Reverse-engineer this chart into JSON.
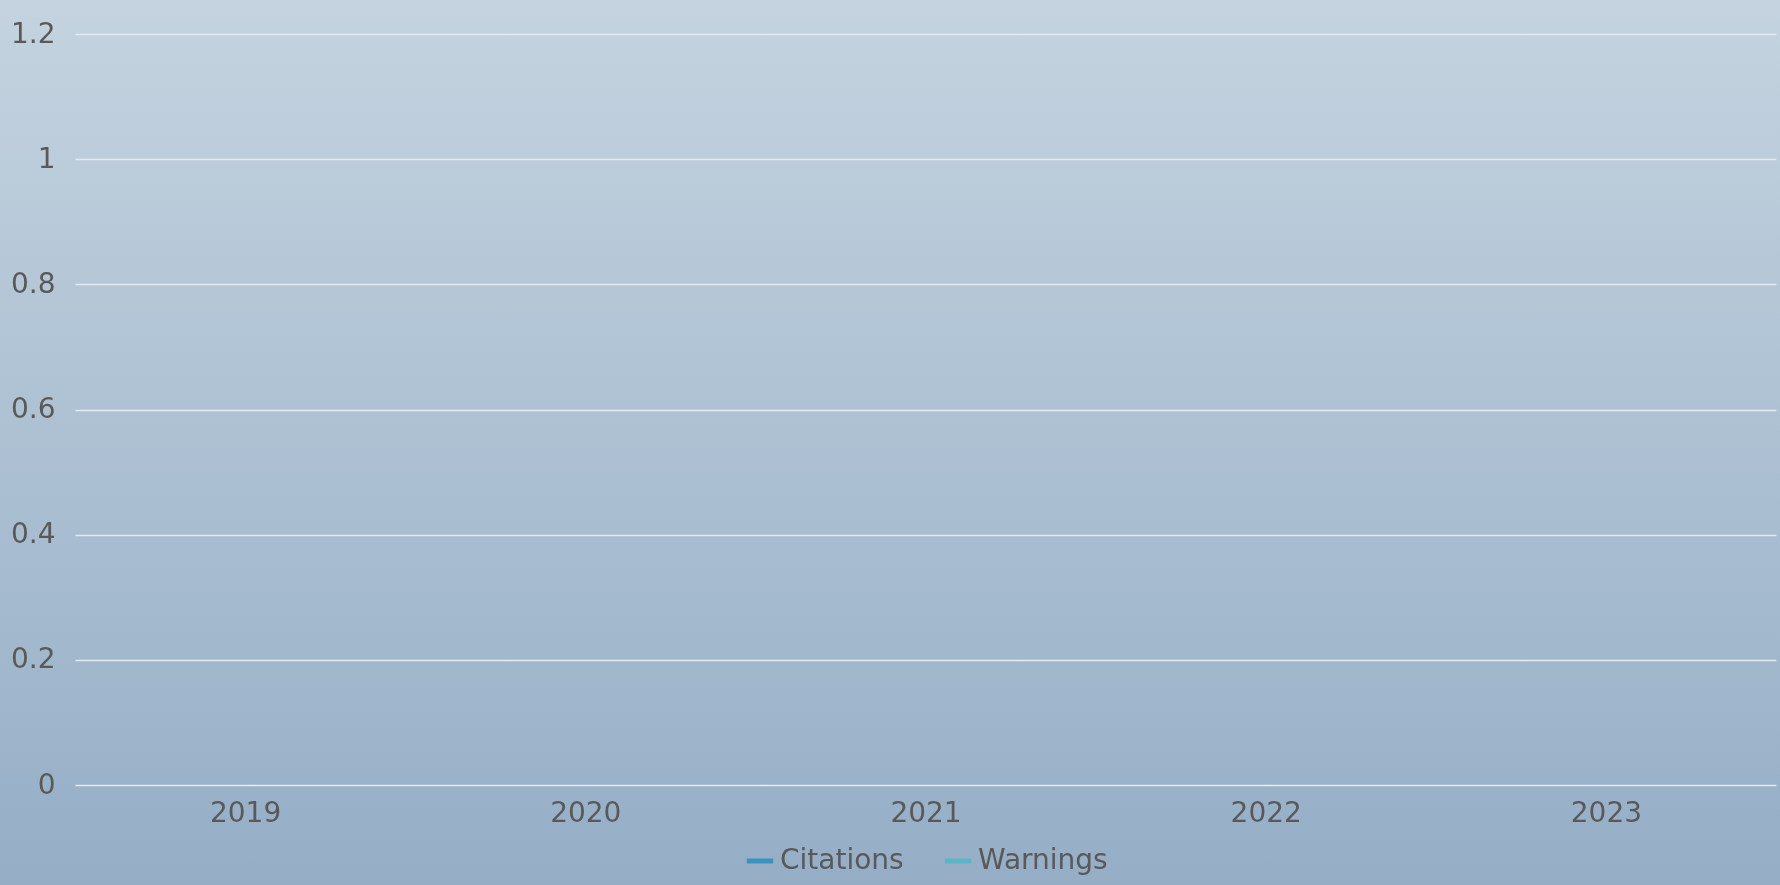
{
  "chart_data": {
    "type": "line",
    "categories": [
      "2019",
      "2020",
      "2021",
      "2022",
      "2023"
    ],
    "series": [
      {
        "name": "Citations",
        "color": "#3a93c0",
        "values": [
          null,
          null,
          null,
          null,
          null
        ]
      },
      {
        "name": "Warnings",
        "color": "#5ab6c6",
        "values": [
          null,
          null,
          null,
          null,
          null
        ]
      }
    ],
    "ylim": [
      0,
      1.2
    ],
    "yticks": [
      0,
      0.2,
      0.4,
      0.6,
      0.8,
      1,
      1.2
    ],
    "grid": "y",
    "legend": "bottom"
  }
}
